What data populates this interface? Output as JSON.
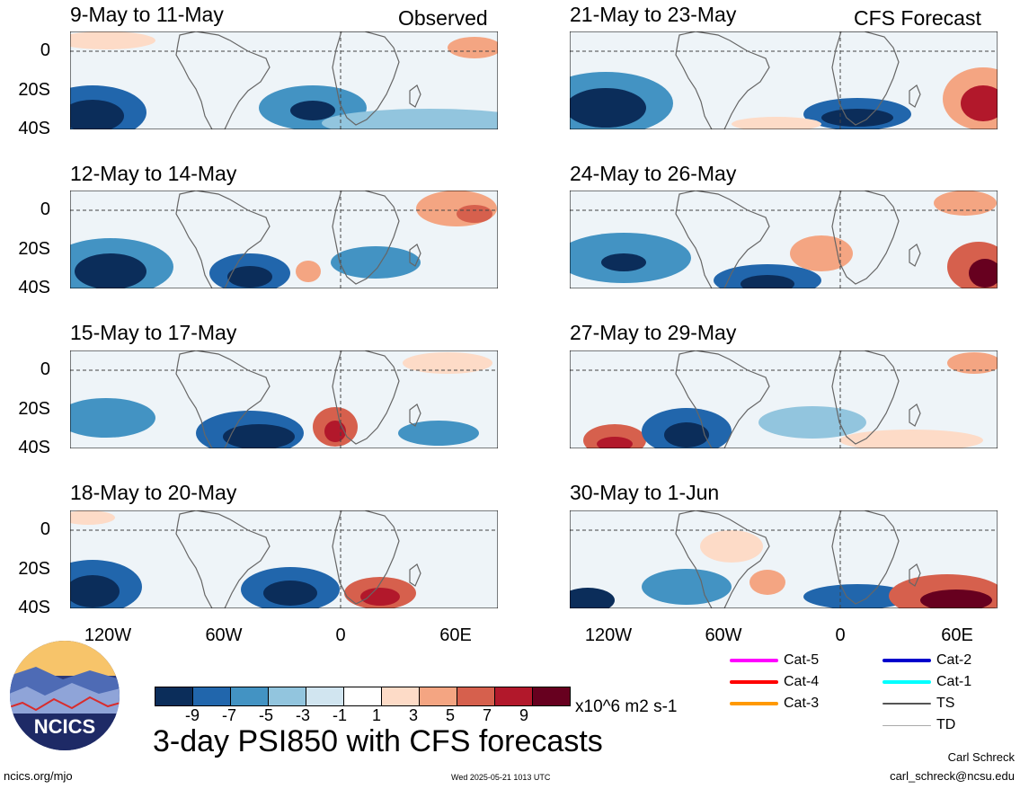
{
  "left_tag": "Observed",
  "right_tag": "CFS Forecast",
  "panels_left": [
    {
      "title": "9-May to 11-May"
    },
    {
      "title": "12-May to 14-May"
    },
    {
      "title": "15-May to 17-May"
    },
    {
      "title": "18-May to 20-May"
    }
  ],
  "panels_right": [
    {
      "title": "21-May to 23-May"
    },
    {
      "title": "24-May to 26-May"
    },
    {
      "title": "27-May to 29-May"
    },
    {
      "title": "30-May to 1-Jun"
    }
  ],
  "y_labels": [
    "0",
    "20S",
    "40S"
  ],
  "x_labels": [
    "120W",
    "60W",
    "0",
    "60E"
  ],
  "colorbar": {
    "labels": [
      "-9",
      "-7",
      "-5",
      "-3",
      "-1",
      "1",
      "3",
      "5",
      "7",
      "9"
    ],
    "colors": [
      "#0b2d5a",
      "#2166ac",
      "#4393c3",
      "#92c5de",
      "#d1e5f0",
      "#ffffff",
      "#fddbc7",
      "#f4a582",
      "#d6604d",
      "#b2182b",
      "#67001f"
    ],
    "units": "x10^6 m2 s-1"
  },
  "legend": [
    {
      "label": "Cat-5",
      "color": "#ff00ff"
    },
    {
      "label": "Cat-2",
      "color": "#0000cc"
    },
    {
      "label": "Cat-4",
      "color": "#ff0000"
    },
    {
      "label": "Cat-1",
      "color": "#00ffff"
    },
    {
      "label": "Cat-3",
      "color": "#ff9900"
    },
    {
      "label": "TS",
      "color": "#555555"
    },
    {
      "label": "TD",
      "color": "#aaaaaa"
    }
  ],
  "logo_text": "NCICS",
  "main_title": "3-day PSI850 with CFS forecasts",
  "footer_left": "ncics.org/mjo",
  "footer_center": "Wed 2025-05-21 1013 UTC",
  "author": "Carl Schreck",
  "email": "carl_schreck@ncsu.edu"
}
